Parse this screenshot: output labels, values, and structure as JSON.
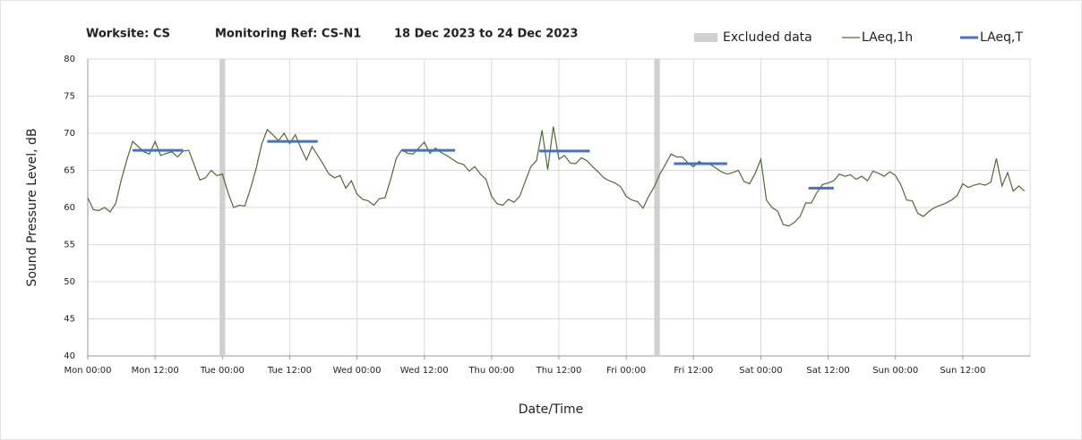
{
  "chart_data": {
    "type": "line",
    "title": [
      "Worksite: CS",
      "Monitoring Ref: CS-N1",
      "18 Dec 2023 to 24 Dec 2023"
    ],
    "x_label": "Date/Time",
    "y_label": "Sound Pressure Level, dB",
    "xlim": [
      0,
      168
    ],
    "ylim": [
      40,
      80
    ],
    "yticks": [
      40,
      45,
      50,
      55,
      60,
      65,
      70,
      75,
      80
    ],
    "xticks": [
      {
        "value": 0,
        "label": "Mon 00:00"
      },
      {
        "value": 12,
        "label": "Mon 12:00"
      },
      {
        "value": 24,
        "label": "Tue 00:00"
      },
      {
        "value": 36,
        "label": "Tue 12:00"
      },
      {
        "value": 48,
        "label": "Wed 00:00"
      },
      {
        "value": 60,
        "label": "Wed 12:00"
      },
      {
        "value": 72,
        "label": "Thu 00:00"
      },
      {
        "value": 84,
        "label": "Thu 12:00"
      },
      {
        "value": 96,
        "label": "Fri 00:00"
      },
      {
        "value": 108,
        "label": "Fri 12:00"
      },
      {
        "value": 120,
        "label": "Sat 00:00"
      },
      {
        "value": 132,
        "label": "Sat 12:00"
      },
      {
        "value": 144,
        "label": "Sun 00:00"
      },
      {
        "value": 156,
        "label": "Sun 12:00"
      }
    ],
    "grid": true,
    "excluded": {
      "name": "Excluded data",
      "color": "#d0d0d0",
      "ranges": [
        [
          23.5,
          24.5
        ],
        [
          101,
          102
        ]
      ]
    },
    "series": [
      {
        "name": "LAeq,1h",
        "color": "#4e6b34",
        "x": [
          0,
          1,
          2,
          3,
          4,
          5,
          6,
          7,
          8,
          9,
          10,
          11,
          12,
          13,
          14,
          15,
          16,
          17,
          18,
          19,
          20,
          21,
          22,
          23,
          24,
          25,
          26,
          27,
          28,
          29,
          30,
          31,
          32,
          33,
          34,
          35,
          36,
          37,
          38,
          39,
          40,
          41,
          42,
          43,
          44,
          45,
          46,
          47,
          48,
          49,
          50,
          51,
          52,
          53,
          54,
          55,
          56,
          57,
          58,
          59,
          60,
          61,
          62,
          63,
          64,
          65,
          66,
          67,
          68,
          69,
          70,
          71,
          72,
          73,
          74,
          75,
          76,
          77,
          78,
          79,
          80,
          81,
          82,
          83,
          84,
          85,
          86,
          87,
          88,
          89,
          90,
          91,
          92,
          93,
          94,
          95,
          96,
          97,
          98,
          99,
          100,
          101,
          102,
          103,
          104,
          105,
          106,
          107,
          108,
          109,
          110,
          111,
          112,
          113,
          114,
          115,
          116,
          117,
          118,
          119,
          120,
          121,
          122,
          123,
          124,
          125,
          126,
          127,
          128,
          129,
          130,
          131,
          132,
          133,
          134,
          135,
          136,
          137,
          138,
          139,
          140,
          141,
          142,
          143,
          144,
          145,
          146,
          147,
          148,
          149,
          150,
          151,
          152,
          153,
          154,
          155,
          156,
          157,
          158,
          159,
          160,
          161,
          162,
          163,
          164,
          165,
          166,
          167
        ],
        "values": [
          61.3,
          59.7,
          59.6,
          60,
          59.4,
          60.6,
          63.8,
          66.5,
          68.9,
          68.2,
          67.5,
          67.2,
          68.9,
          67,
          67.3,
          67.5,
          66.8,
          67.6,
          67.7,
          65.7,
          63.7,
          64,
          65,
          64.3,
          64.5,
          62,
          60,
          60.3,
          60.2,
          62.5,
          65.2,
          68.5,
          70.5,
          69.8,
          69,
          70,
          68.6,
          69.8,
          68,
          66.4,
          68.2,
          67,
          65.8,
          64.5,
          64,
          64.3,
          62.6,
          63.6,
          61.8,
          61.1,
          60.9,
          60.3,
          61.2,
          61.3,
          63.8,
          66.6,
          67.8,
          67.3,
          67.2,
          68,
          68.8,
          67.3,
          68,
          67.4,
          67,
          66.5,
          66,
          65.8,
          64.9,
          65.5,
          64.5,
          63.8,
          61.5,
          60.5,
          60.3,
          61.1,
          60.7,
          61.5,
          63.5,
          65.5,
          66.3,
          70.4,
          65.1,
          70.9,
          66.5,
          67,
          66,
          65.9,
          66.7,
          66.3,
          65.5,
          64.8,
          64,
          63.6,
          63.3,
          62.8,
          61.5,
          61,
          60.8,
          59.9,
          61.5,
          62.8,
          64.5,
          65.8,
          67.2,
          66.8,
          66.8,
          66,
          65.5,
          66.2,
          65.8,
          65.8,
          65.3,
          64.8,
          64.5,
          64.7,
          65,
          63.5,
          63.2,
          64.6,
          66.5,
          61,
          60,
          59.5,
          57.7,
          57.5,
          58,
          58.8,
          60.6,
          60.6,
          62,
          63.1,
          63.3,
          63.6,
          64.5,
          64.2,
          64.4,
          63.8,
          64.2,
          63.6,
          64.9,
          64.6,
          64.2,
          64.8,
          64.3,
          63,
          61,
          60.9,
          59.2,
          58.8,
          59.5,
          60,
          60.3,
          60.6,
          61,
          61.6,
          63.2,
          62.7,
          63,
          63.2,
          63,
          63.4,
          66.6,
          62.9,
          64.7,
          62.2,
          62.9,
          62.2
        ]
      },
      {
        "name": "LAeq,T",
        "color": "#4472c4",
        "segments": [
          {
            "x": [
              8,
              17
            ],
            "value": 67.7
          },
          {
            "x": [
              32,
              41
            ],
            "value": 68.9
          },
          {
            "x": [
              56,
              65.5
            ],
            "value": 67.7
          },
          {
            "x": [
              80.5,
              89.5
            ],
            "value": 67.6
          },
          {
            "x": [
              104.5,
              114
            ],
            "value": 65.9
          },
          {
            "x": [
              128.5,
              133
            ],
            "value": 62.6
          }
        ]
      }
    ]
  }
}
